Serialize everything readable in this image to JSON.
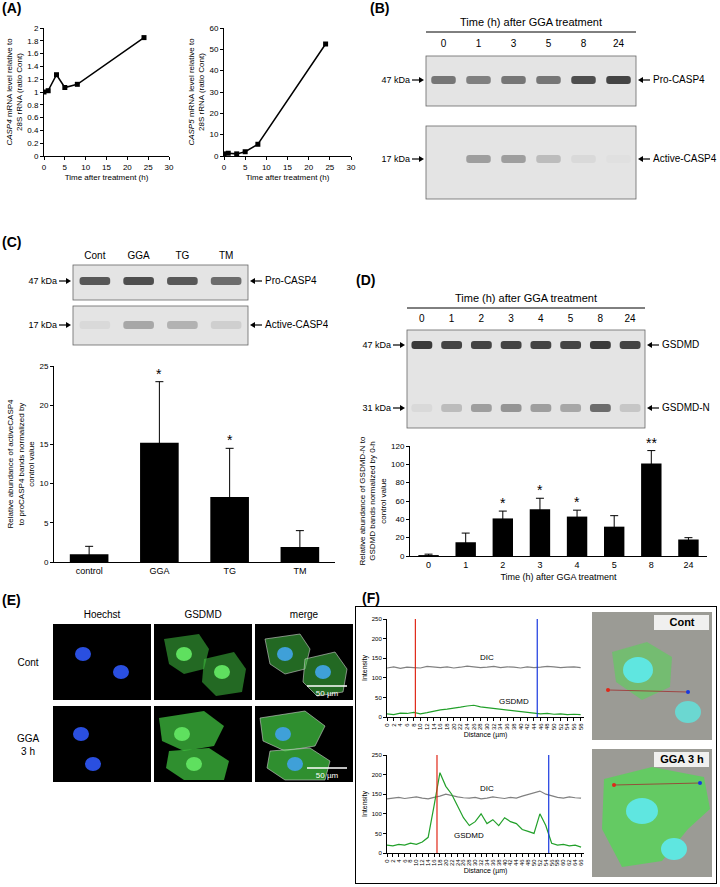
{
  "panel_labels": [
    "(A)",
    "(B)",
    "(C)",
    "(D)",
    "(E)",
    "(F)"
  ],
  "chart_data": [
    {
      "type": "line",
      "x": [
        0,
        1,
        3,
        5,
        8,
        24
      ],
      "values": [
        1.0,
        1.02,
        1.27,
        1.07,
        1.12,
        1.85
      ],
      "xlim": [
        0,
        30
      ],
      "xticks": [
        0,
        5,
        10,
        15,
        20,
        25,
        30
      ],
      "ylim": [
        0,
        2
      ],
      "yticks": [
        0,
        0.2,
        0.4,
        0.6,
        0.8,
        1,
        1.2,
        1.4,
        1.6,
        1.8,
        2
      ],
      "x_label": "Time after treatment (h)",
      "y_label": "CASP4 mRNA level relative to 28S rRNA (ratio Cont)",
      "color": "#000000",
      "marker": "square",
      "grid": false
    },
    {
      "type": "line",
      "x": [
        0,
        1,
        3,
        5,
        8,
        24
      ],
      "values": [
        1.0,
        1.3,
        1.0,
        2.0,
        5.5,
        52.5
      ],
      "xlim": [
        0,
        30
      ],
      "xticks": [
        0,
        5,
        10,
        15,
        20,
        25,
        30
      ],
      "ylim": [
        0,
        60
      ],
      "yticks": [
        0,
        10,
        20,
        30,
        40,
        50,
        60
      ],
      "x_label": "Time after treatment (h)",
      "y_label": "CASP5 mRNA level relative to 28S rRNA (ratio Cont)",
      "color": "#000000",
      "marker": "square",
      "grid": false
    },
    {
      "type": "bar",
      "categories": [
        "control",
        "GGA",
        "TG",
        "TM"
      ],
      "values": [
        1.0,
        15.2,
        8.3,
        1.9
      ],
      "errors": [
        1.0,
        7.8,
        6.2,
        2.1
      ],
      "ylim": [
        0,
        25
      ],
      "yticks": [
        0,
        5,
        10,
        15,
        20,
        25
      ],
      "y_label": "Relative abundance of activeCASP4 to proCASP4 bands normalized by control value",
      "color": "#000000",
      "grid": false,
      "annotations": [
        {
          "category": "GGA",
          "text": "*"
        },
        {
          "category": "TG",
          "text": "*"
        }
      ]
    },
    {
      "type": "bar",
      "categories": [
        "0",
        "1",
        "2",
        "3",
        "4",
        "5",
        "8",
        "24"
      ],
      "values": [
        1,
        15,
        41,
        51,
        43,
        32,
        101,
        18
      ],
      "errors": [
        1,
        10,
        8,
        12,
        7,
        12,
        14,
        2
      ],
      "ylim": [
        0,
        120
      ],
      "yticks": [
        0,
        20,
        40,
        60,
        80,
        100,
        120
      ],
      "x_label": "Time (h) after GGA treatment",
      "y_label": "Relative abundance of GSDMD-N to GSDMD bands normalized by 0-h control value",
      "color": "#000000",
      "grid": false,
      "annotations": [
        {
          "category": "2",
          "text": "*"
        },
        {
          "category": "3",
          "text": "*"
        },
        {
          "category": "4",
          "text": "*"
        },
        {
          "category": "8",
          "text": "**"
        }
      ]
    },
    {
      "type": "line",
      "image_label": "Cont",
      "x": [
        0,
        2,
        4,
        6,
        8,
        10,
        12,
        14,
        16,
        18,
        20,
        22,
        24,
        26,
        28,
        30,
        32,
        34,
        36,
        38,
        40,
        42,
        44,
        46,
        48,
        50,
        52,
        54,
        56,
        58
      ],
      "series": [
        {
          "name": "DIC",
          "color": "#808080",
          "values": [
            125,
            128,
            124,
            127,
            126,
            125,
            129,
            127,
            126,
            128,
            125,
            127,
            130,
            128,
            126,
            127,
            129,
            126,
            128,
            127,
            125,
            128,
            126,
            127,
            129,
            128,
            126,
            127,
            128,
            126
          ]
        },
        {
          "name": "GSDMD",
          "color": "#22a02a",
          "values": [
            8,
            6,
            10,
            9,
            12,
            8,
            11,
            15,
            18,
            20,
            22,
            25,
            28,
            30,
            26,
            24,
            22,
            20,
            18,
            16,
            14,
            12,
            10,
            8,
            9,
            7,
            8,
            6,
            7,
            6
          ]
        }
      ],
      "xlim": [
        0,
        59
      ],
      "xticks": [
        0,
        2,
        4,
        6,
        8,
        10,
        12,
        14,
        16,
        18,
        20,
        22,
        24,
        26,
        28,
        30,
        32,
        34,
        36,
        38,
        40,
        42,
        44,
        46,
        48,
        50,
        52,
        54,
        56,
        58
      ],
      "ylim": [
        0,
        250
      ],
      "yticks": [
        0,
        50,
        100,
        150,
        200,
        250
      ],
      "x_label": "Distance (µm)",
      "y_label": "Intensity",
      "grid": false,
      "vlines": [
        {
          "x": 8.5,
          "color": "#e02818"
        },
        {
          "x": 45,
          "color": "#1838e0"
        }
      ]
    },
    {
      "type": "line",
      "image_label": "GGA 3 h",
      "x": [
        0,
        2,
        4,
        6,
        8,
        10,
        12,
        14,
        16,
        18,
        20,
        22,
        24,
        26,
        28,
        30,
        32,
        34,
        36,
        38,
        40,
        42,
        44,
        46,
        48,
        50,
        52,
        54,
        56,
        58,
        60,
        62,
        64,
        66
      ],
      "series": [
        {
          "name": "DIC",
          "color": "#808080",
          "values": [
            138,
            140,
            142,
            139,
            141,
            143,
            140,
            138,
            142,
            145,
            150,
            146,
            143,
            141,
            140,
            142,
            138,
            140,
            143,
            141,
            139,
            142,
            140,
            145,
            150,
            155,
            158,
            150,
            145,
            142,
            140,
            143,
            141,
            140
          ]
        },
        {
          "name": "GSDMD",
          "color": "#22a02a",
          "values": [
            20,
            18,
            22,
            20,
            25,
            22,
            28,
            40,
            120,
            205,
            170,
            150,
            120,
            90,
            70,
            80,
            100,
            75,
            85,
            70,
            90,
            80,
            75,
            60,
            55,
            50,
            100,
            70,
            25,
            20,
            22,
            18,
            20,
            15
          ]
        }
      ],
      "xlim": [
        0,
        67
      ],
      "xticks": [
        0,
        2,
        4,
        6,
        8,
        10,
        12,
        14,
        16,
        18,
        20,
        22,
        24,
        26,
        28,
        30,
        32,
        34,
        36,
        38,
        40,
        42,
        44,
        46,
        48,
        50,
        52,
        54,
        56,
        58,
        60,
        62,
        64,
        66
      ],
      "ylim": [
        0,
        250
      ],
      "yticks": [
        0,
        50,
        100,
        150,
        200,
        250
      ],
      "x_label": "Distance (µm)",
      "y_label": "Intensity",
      "grid": false,
      "vlines": [
        {
          "x": 17,
          "color": "#e02818"
        },
        {
          "x": 55,
          "color": "#1838e0"
        }
      ]
    }
  ],
  "blots": [
    {
      "title": "Time (h) after GGA treatment",
      "lanes": [
        "0",
        "1",
        "3",
        "5",
        "8",
        "24"
      ],
      "rows": [
        {
          "label": "Pro-CASP4",
          "kda": "47 kDa",
          "intensity": [
            0.55,
            0.5,
            0.55,
            0.55,
            0.75,
            0.8
          ]
        },
        {
          "label": "Active-CASP4",
          "kda": "17 kDa",
          "intensity": [
            0.0,
            0.35,
            0.35,
            0.2,
            0.05,
            0.02
          ]
        }
      ]
    },
    {
      "lanes": [
        "Cont",
        "GGA",
        "TG",
        "TM"
      ],
      "rows": [
        {
          "label": "Pro-CASP4",
          "kda": "47 kDa",
          "intensity": [
            0.7,
            0.75,
            0.7,
            0.6
          ]
        },
        {
          "label": "Active-CASP4",
          "kda": "17 kDa",
          "intensity": [
            0.05,
            0.3,
            0.25,
            0.1
          ]
        }
      ]
    },
    {
      "title": "Time (h) after GGA treatment",
      "lanes": [
        "0",
        "1",
        "2",
        "3",
        "4",
        "5",
        "8",
        "24"
      ],
      "rows": [
        {
          "label": "GSDMD",
          "kda": "47 kDa",
          "intensity": [
            0.85,
            0.8,
            0.8,
            0.8,
            0.8,
            0.8,
            0.85,
            0.8
          ]
        },
        {
          "label": "GSDMD-N",
          "kda": "31 kDa",
          "intensity": [
            0.05,
            0.2,
            0.35,
            0.4,
            0.35,
            0.3,
            0.6,
            0.15
          ]
        }
      ]
    }
  ],
  "micrographs": {
    "columns": [
      "Hoechst",
      "GSDMD",
      "merge"
    ],
    "rows": [
      "Cont",
      "GGA 3 h"
    ],
    "scale_bar": "50 µm"
  }
}
